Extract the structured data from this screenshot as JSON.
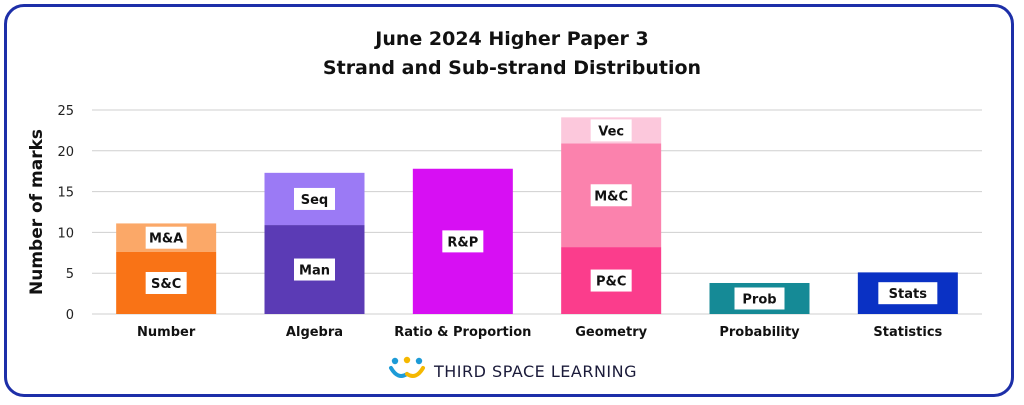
{
  "chart_data": {
    "type": "bar",
    "stacked": true,
    "title": "June 2024 Higher Paper 3",
    "subtitle": "Strand and Sub-strand Distribution",
    "ylabel": "Number of marks",
    "xlabel": "",
    "ylim": [
      0,
      25
    ],
    "yticks": [
      0,
      5,
      10,
      15,
      20,
      25
    ],
    "grid": true,
    "categories": [
      "Number",
      "Algebra",
      "Ratio & Proportion",
      "Geometry",
      "Probability",
      "Statistics"
    ],
    "bars": [
      {
        "category": "Number",
        "segments": [
          {
            "label": "S&C",
            "value": 7.6,
            "color": "#f97316"
          },
          {
            "label": "M&A",
            "value": 3.5,
            "color": "#fba868"
          }
        ]
      },
      {
        "category": "Algebra",
        "segments": [
          {
            "label": "Man",
            "value": 10.9,
            "color": "#5b3bb5"
          },
          {
            "label": "Seq",
            "value": 6.4,
            "color": "#9b7af5"
          }
        ]
      },
      {
        "category": "Ratio & Proportion",
        "segments": [
          {
            "label": "R&P",
            "value": 17.8,
            "color": "#d70ff3"
          }
        ]
      },
      {
        "category": "Geometry",
        "segments": [
          {
            "label": "P&C",
            "value": 8.2,
            "color": "#fb3d8c"
          },
          {
            "label": "M&C",
            "value": 12.7,
            "color": "#fb82ad"
          },
          {
            "label": "Vec",
            "value": 3.2,
            "color": "#fcc8dc"
          }
        ]
      },
      {
        "category": "Probability",
        "segments": [
          {
            "label": "Prob",
            "value": 3.8,
            "color": "#158a96"
          }
        ]
      },
      {
        "category": "Statistics",
        "segments": [
          {
            "label": "Stats",
            "value": 5.1,
            "color": "#0a31c4"
          }
        ]
      }
    ]
  },
  "footer": {
    "brand_name": "THIRD SPACE LEARNING",
    "logo_icon": "third-space-learning-logo-icon"
  },
  "colors": {
    "frame": "#1d2fa8",
    "gridline": "#cfcfcf"
  }
}
